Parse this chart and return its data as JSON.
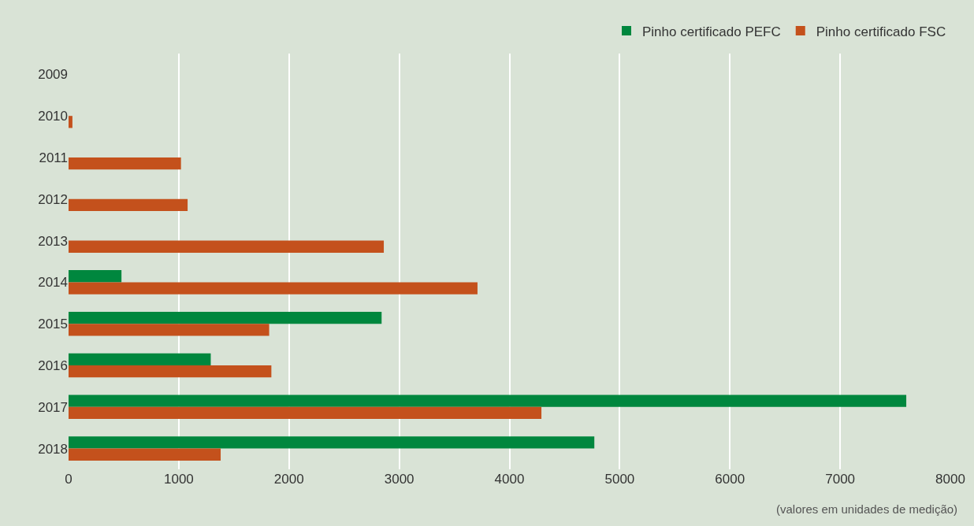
{
  "chart_data": {
    "type": "bar",
    "orientation": "horizontal",
    "categories": [
      "2009",
      "2010",
      "2011",
      "2012",
      "2013",
      "2014",
      "2015",
      "2016",
      "2017",
      "2018"
    ],
    "series": [
      {
        "name": "Pinho certificado PEFC",
        "color": "#00873e",
        "values": [
          null,
          null,
          null,
          null,
          null,
          480,
          2840,
          1290,
          7600,
          4770
        ]
      },
      {
        "name": "Pinho certificado FSC",
        "color": "#c4511c",
        "values": [
          null,
          35,
          1020,
          1080,
          2860,
          3710,
          1820,
          1840,
          4290,
          1380
        ]
      }
    ],
    "xlim": [
      0,
      8000
    ],
    "xticks": [
      0,
      1000,
      2000,
      3000,
      4000,
      5000,
      6000,
      7000,
      8000
    ],
    "grid": "x",
    "legend": "top right",
    "annotations": [
      "(valores em unidades de medição)"
    ]
  }
}
